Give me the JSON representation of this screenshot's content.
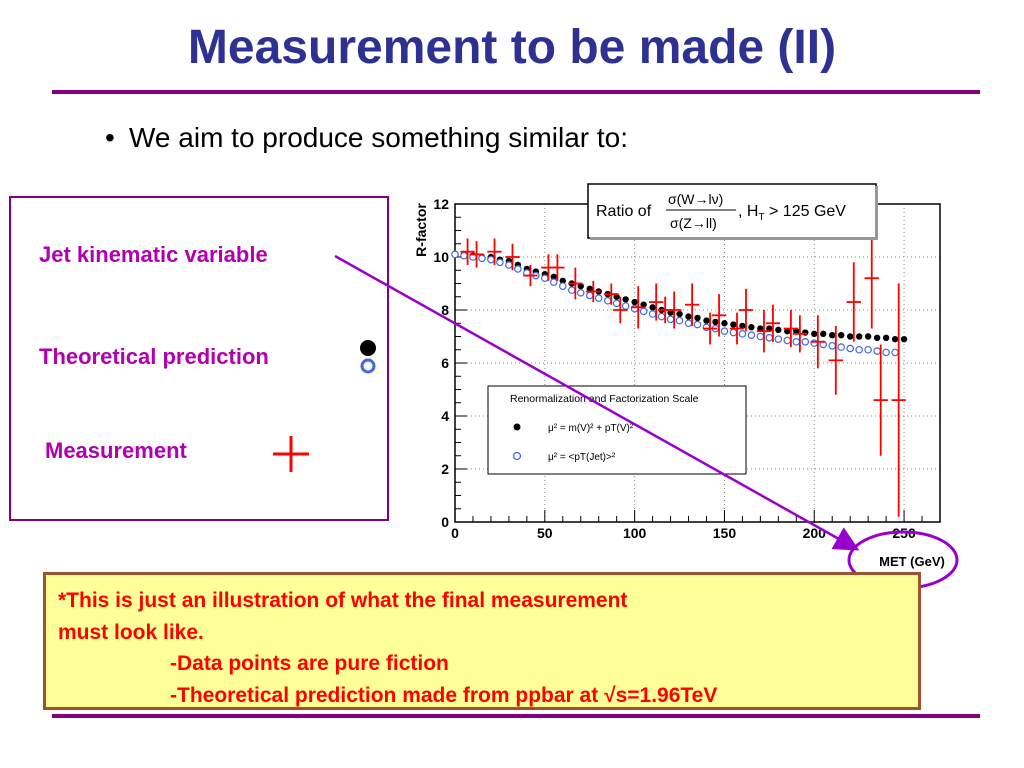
{
  "title": "Measurement to be made (II)",
  "bullet": {
    "symbol": "•",
    "text": "We aim to produce something similar to:"
  },
  "legend_box": {
    "jet_label": "Jet kinematic variable",
    "theory_label": "Theoretical prediction",
    "measurement_label": "Measurement"
  },
  "note": {
    "line1": "*This is just an illustration of what the final measurement",
    "line2": "must look like.",
    "line3": "-Data points are pure fiction",
    "line4": "-Theoretical prediction made from ppbar at √s=1.96TeV"
  },
  "colors": {
    "title": "#2e3192",
    "accent": "#800080",
    "labels": "#b000b0",
    "measurement": "#ff0000",
    "theory_open": "#4169e1"
  },
  "chart_data": {
    "type": "scatter",
    "title_prefix": "Ratio of",
    "title_num": "σ(W→lν)",
    "title_den": "σ(Z→ll)",
    "title_suffix": ", H",
    "title_sub": "T",
    "title_cut": " > 125 GeV",
    "xlabel": "MET (GeV)",
    "ylabel": "R-factor",
    "xlim": [
      0,
      270
    ],
    "ylim": [
      0,
      12
    ],
    "x_ticks": [
      "0",
      "50",
      "100",
      "150",
      "200",
      "250"
    ],
    "y_ticks": [
      "0",
      "2",
      "4",
      "6",
      "8",
      "10",
      "12"
    ],
    "legend_title": "Renormalization and Factorization Scale",
    "legend_entry1": "μ² = m(V)² + pT(V)²",
    "legend_entry2": "μ² = <pT(Jet)>²",
    "series": [
      {
        "name": "μ² = m(V)² + pT(V)²",
        "marker": "filled-circle",
        "x": [
          0,
          5,
          10,
          15,
          20,
          25,
          30,
          35,
          40,
          45,
          50,
          55,
          60,
          65,
          70,
          75,
          80,
          85,
          90,
          95,
          100,
          105,
          110,
          115,
          120,
          125,
          130,
          135,
          140,
          145,
          150,
          155,
          160,
          165,
          170,
          175,
          180,
          185,
          190,
          195,
          200,
          205,
          210,
          215,
          220,
          225,
          230,
          235,
          240,
          245,
          250
        ],
        "y": [
          10.1,
          10.1,
          10.05,
          10.0,
          10.0,
          9.9,
          9.85,
          9.7,
          9.55,
          9.45,
          9.35,
          9.25,
          9.1,
          9.0,
          8.9,
          8.8,
          8.7,
          8.6,
          8.5,
          8.4,
          8.3,
          8.2,
          8.1,
          8.0,
          7.9,
          7.85,
          7.75,
          7.7,
          7.6,
          7.55,
          7.5,
          7.45,
          7.4,
          7.35,
          7.3,
          7.3,
          7.25,
          7.2,
          7.2,
          7.15,
          7.1,
          7.1,
          7.05,
          7.05,
          7.0,
          7.0,
          7.0,
          6.95,
          6.95,
          6.9,
          6.9
        ]
      },
      {
        "name": "μ² = <pT(Jet)>²",
        "marker": "open-circle",
        "x": [
          0,
          5,
          10,
          15,
          20,
          25,
          30,
          35,
          40,
          45,
          50,
          55,
          60,
          65,
          70,
          75,
          80,
          85,
          90,
          95,
          100,
          105,
          110,
          115,
          120,
          125,
          130,
          135,
          140,
          145,
          150,
          155,
          160,
          165,
          170,
          175,
          180,
          185,
          190,
          195,
          200,
          205,
          210,
          215,
          220,
          225,
          230,
          235,
          240,
          245
        ],
        "y": [
          10.1,
          10.05,
          10.0,
          9.95,
          9.9,
          9.8,
          9.7,
          9.55,
          9.4,
          9.3,
          9.2,
          9.05,
          8.9,
          8.75,
          8.65,
          8.55,
          8.45,
          8.35,
          8.25,
          8.15,
          8.05,
          7.95,
          7.85,
          7.75,
          7.65,
          7.6,
          7.5,
          7.45,
          7.35,
          7.3,
          7.2,
          7.15,
          7.1,
          7.05,
          7.0,
          6.95,
          6.9,
          6.85,
          6.8,
          6.8,
          6.75,
          6.7,
          6.65,
          6.6,
          6.55,
          6.5,
          6.5,
          6.45,
          6.4,
          6.4
        ]
      },
      {
        "name": "Measurement",
        "marker": "error-cross",
        "x": [
          7,
          12,
          22,
          32,
          42,
          52,
          57,
          67,
          77,
          87,
          92,
          102,
          112,
          117,
          122,
          132,
          142,
          147,
          157,
          162,
          172,
          177,
          187,
          192,
          202,
          212,
          222,
          232,
          237,
          247
        ],
        "y": [
          10.2,
          10.1,
          10.2,
          10.0,
          9.3,
          9.6,
          9.6,
          9.0,
          8.7,
          8.6,
          8.0,
          8.1,
          8.3,
          8.0,
          8.0,
          8.2,
          7.3,
          7.8,
          7.3,
          8.0,
          7.2,
          7.5,
          7.3,
          7.1,
          6.8,
          6.1,
          8.3,
          9.2,
          4.6,
          4.6
        ],
        "yerr": [
          0.5,
          0.5,
          0.5,
          0.5,
          0.4,
          0.5,
          0.5,
          0.6,
          0.4,
          0.4,
          0.5,
          0.8,
          0.7,
          0.5,
          0.7,
          0.8,
          0.6,
          0.8,
          0.6,
          0.8,
          0.8,
          0.7,
          0.7,
          0.7,
          1.0,
          1.3,
          1.5,
          1.9,
          2.1,
          4.4
        ],
        "xerr": [
          4,
          4,
          4,
          4,
          4,
          4,
          4,
          4,
          4,
          4,
          4,
          4,
          4,
          4,
          4,
          4,
          4,
          4,
          4,
          4,
          4,
          4,
          4,
          4,
          4,
          4,
          4,
          4,
          4,
          4
        ]
      }
    ]
  }
}
